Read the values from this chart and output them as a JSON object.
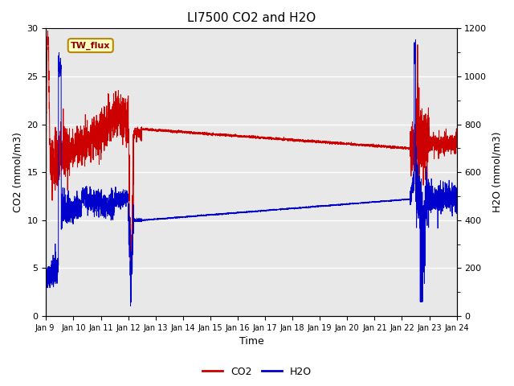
{
  "title": "LI7500 CO2 and H2O",
  "xlabel": "Time",
  "ylabel_left": "CO2 (mmol/m3)",
  "ylabel_right": "H2O (mmol/m3)",
  "ylim_left": [
    0,
    30
  ],
  "ylim_right": [
    0,
    1200
  ],
  "yticks_left": [
    0,
    5,
    10,
    15,
    20,
    25,
    30
  ],
  "yticks_right": [
    0,
    200,
    400,
    600,
    800,
    1000,
    1200
  ],
  "fig_bg_color": "#ffffff",
  "plot_bg_color": "#e8e8e8",
  "co2_color": "#cc0000",
  "h2o_color": "#0000cc",
  "legend_label_co2": "CO2",
  "legend_label_h2o": "H2O",
  "annotation_text": "TW_flux",
  "x_tick_labels": [
    "Jan 9 ",
    "Jan 10",
    "Jan 11",
    "Jan 12",
    "Jan 13",
    "Jan 14",
    "Jan 15",
    "Jan 16",
    "Jan 17",
    "Jan 18",
    "Jan 19",
    "Jan 20",
    "Jan 21",
    "Jan 22",
    "Jan 23",
    "Jan 24"
  ]
}
